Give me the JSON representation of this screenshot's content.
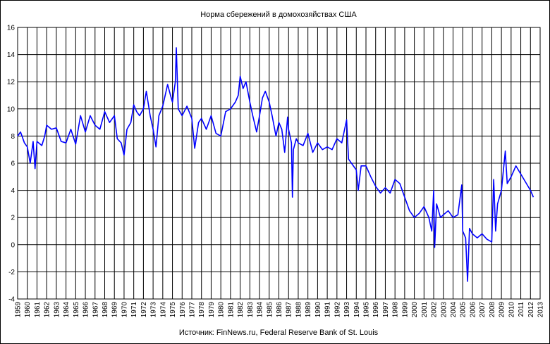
{
  "chart_data": {
    "type": "line",
    "title": "Норма  сбережений  в домохозяйствах  США",
    "source": "Источник: FinNews.ru, Federal Reserve Bank of St. Louis",
    "x": [
      1959.0,
      1959.3,
      1959.7,
      1960.0,
      1960.3,
      1960.6,
      1960.8,
      1961.0,
      1961.5,
      1961.8,
      1962.0,
      1962.5,
      1963.0,
      1963.5,
      1964.0,
      1964.5,
      1965.0,
      1965.5,
      1966.0,
      1966.5,
      1967.0,
      1967.5,
      1968.0,
      1968.5,
      1969.0,
      1969.3,
      1969.7,
      1970.0,
      1970.3,
      1970.7,
      1971.0,
      1971.3,
      1971.6,
      1972.0,
      1972.3,
      1972.7,
      1973.0,
      1973.3,
      1973.6,
      1974.0,
      1974.5,
      1974.8,
      1975.0,
      1975.3,
      1975.4,
      1975.6,
      1976.0,
      1976.5,
      1977.0,
      1977.3,
      1977.7,
      1978.0,
      1978.5,
      1979.0,
      1979.5,
      1980.0,
      1980.5,
      1981.0,
      1981.5,
      1981.8,
      1982.0,
      1982.3,
      1982.6,
      1983.0,
      1983.3,
      1983.7,
      1984.0,
      1984.3,
      1984.6,
      1985.0,
      1985.3,
      1985.7,
      1986.0,
      1986.3,
      1986.6,
      1986.9,
      1987.0,
      1987.3,
      1987.4,
      1987.5,
      1987.8,
      1988.0,
      1988.5,
      1989.0,
      1989.5,
      1990.0,
      1990.5,
      1991.0,
      1991.5,
      1992.0,
      1992.5,
      1993.0,
      1993.2,
      1993.5,
      1994.0,
      1994.2,
      1994.5,
      1995.0,
      1995.5,
      1996.0,
      1996.5,
      1997.0,
      1997.5,
      1998.0,
      1998.5,
      1999.0,
      1999.5,
      2000.0,
      2000.5,
      2001.0,
      2001.5,
      2001.8,
      2002.0,
      2002.1,
      2002.3,
      2002.7,
      2003.0,
      2003.5,
      2004.0,
      2004.5,
      2004.9,
      2005.0,
      2005.3,
      2005.5,
      2005.7,
      2006.0,
      2006.5,
      2007.0,
      2007.5,
      2008.0,
      2008.2,
      2008.4,
      2008.6,
      2009.0,
      2009.4,
      2009.6,
      2010.0,
      2010.5,
      2011.0,
      2011.5,
      2012.0,
      2012.3
    ],
    "series": [
      {
        "name": "Норма сбережений",
        "color": "#0000ff",
        "values": [
          8.0,
          8.3,
          7.5,
          7.2,
          6.0,
          7.6,
          5.6,
          7.6,
          7.3,
          8.0,
          8.8,
          8.5,
          8.6,
          7.6,
          7.5,
          8.5,
          7.4,
          9.5,
          8.3,
          9.5,
          8.8,
          8.5,
          9.8,
          9.0,
          9.5,
          7.8,
          7.5,
          6.6,
          8.5,
          9.0,
          10.3,
          9.8,
          9.5,
          10.0,
          11.3,
          9.5,
          8.5,
          7.2,
          9.5,
          10.2,
          11.8,
          11.0,
          10.5,
          12.0,
          14.5,
          10.0,
          9.5,
          10.2,
          9.3,
          7.1,
          9.0,
          9.3,
          8.5,
          9.5,
          8.2,
          8.0,
          9.8,
          10.0,
          10.5,
          11.0,
          12.4,
          11.5,
          12.0,
          10.5,
          9.5,
          8.3,
          9.5,
          10.8,
          11.3,
          10.5,
          9.5,
          8.0,
          9.0,
          8.5,
          6.8,
          9.4,
          8.5,
          7.5,
          3.5,
          7.0,
          7.8,
          7.5,
          7.3,
          8.2,
          6.8,
          7.5,
          7.0,
          7.2,
          7.0,
          7.8,
          7.5,
          9.2,
          6.3,
          6.0,
          5.5,
          4.0,
          5.8,
          5.8,
          5.0,
          4.3,
          3.8,
          4.2,
          3.8,
          4.8,
          4.5,
          3.5,
          2.5,
          2.0,
          2.3,
          2.8,
          2.0,
          1.0,
          4.0,
          -0.2,
          3.0,
          2.0,
          2.2,
          2.5,
          2.0,
          2.2,
          4.4,
          1.0,
          0.5,
          -2.7,
          1.2,
          0.8,
          0.5,
          0.8,
          0.4,
          0.2,
          4.8,
          1.0,
          3.0,
          4.0,
          6.9,
          4.5,
          5.0,
          5.8,
          5.2,
          4.6,
          4.0,
          3.5
        ]
      }
    ],
    "xlim": [
      1959,
      2013
    ],
    "xticks": [
      1959,
      1960,
      1961,
      1962,
      1963,
      1964,
      1965,
      1966,
      1967,
      1968,
      1969,
      1970,
      1971,
      1972,
      1973,
      1974,
      1975,
      1976,
      1977,
      1978,
      1979,
      1980,
      1981,
      1982,
      1983,
      1984,
      1985,
      1986,
      1987,
      1988,
      1989,
      1990,
      1991,
      1992,
      1993,
      1994,
      1995,
      1996,
      1997,
      1998,
      1999,
      2000,
      2001,
      2002,
      2003,
      2004,
      2005,
      2006,
      2007,
      2008,
      2009,
      2010,
      2011,
      2012,
      2013
    ],
    "ylim": [
      -4,
      16
    ],
    "yticks": [
      -4,
      -2,
      0,
      2,
      4,
      6,
      8,
      10,
      12,
      14,
      16
    ],
    "grid": true
  }
}
